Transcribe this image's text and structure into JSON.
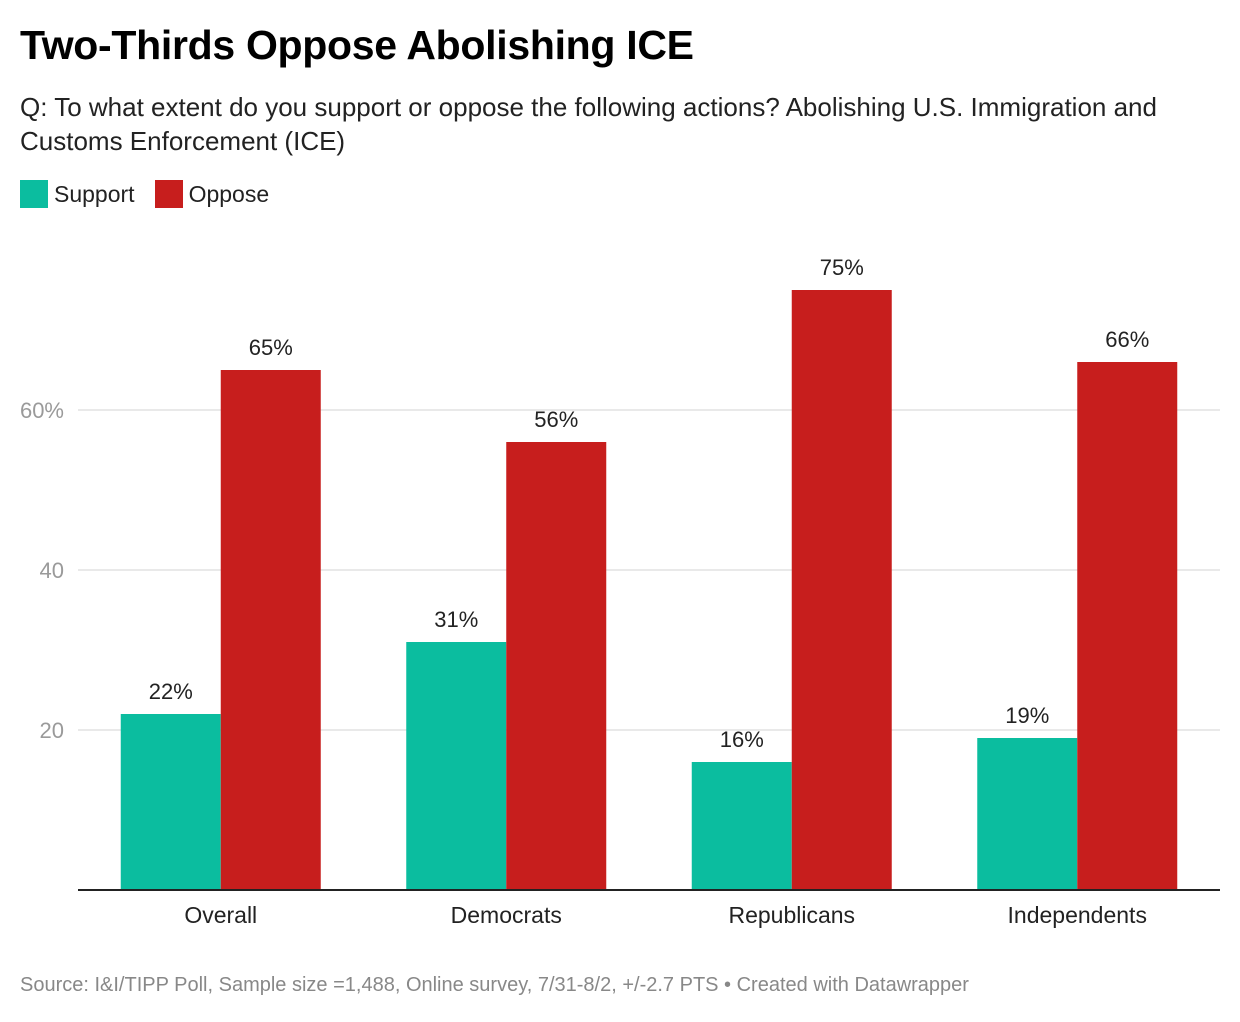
{
  "header": {
    "title": "Two-Thirds Oppose Abolishing ICE",
    "subtitle": "Q: To what extent do you support or oppose the following actions? Abolishing U.S. Immigration and Customs Enforcement (ICE)"
  },
  "legend": {
    "items": [
      {
        "label": "Support",
        "color": "#0bbd9f"
      },
      {
        "label": "Oppose",
        "color": "#c71e1d"
      }
    ]
  },
  "footer": {
    "source": "Source: I&I/TIPP Poll, Sample size =1,488, Online survey, 7/31-8/2, +/-2.7 PTS • Created with Datawrapper"
  },
  "chart_data": {
    "type": "bar",
    "title": "Two-Thirds Oppose Abolishing ICE",
    "xlabel": "",
    "ylabel": "",
    "categories": [
      "Overall",
      "Democrats",
      "Republicans",
      "Independents"
    ],
    "series": [
      {
        "name": "Support",
        "color": "#0bbd9f",
        "values": [
          22,
          31,
          16,
          19
        ],
        "labels": [
          "22%",
          "31%",
          "16%",
          "19%"
        ]
      },
      {
        "name": "Oppose",
        "color": "#c71e1d",
        "values": [
          65,
          56,
          75,
          66
        ],
        "labels": [
          "65%",
          "56%",
          "75%",
          "66%"
        ]
      }
    ],
    "ylim": [
      0,
      80
    ],
    "yticks": [
      20,
      40,
      60
    ],
    "ytick_labels": [
      "20",
      "40",
      "60%"
    ],
    "grid": true,
    "legend": "top-left"
  }
}
